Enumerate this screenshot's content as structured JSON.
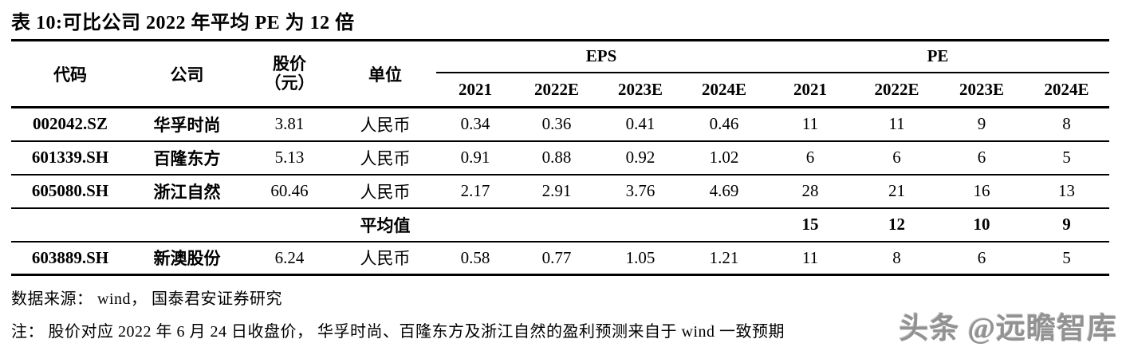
{
  "title": "表 10:可比公司 2022 年平均 PE 为 12 倍",
  "table": {
    "col_headers": {
      "code": "代码",
      "company": "公司",
      "price_line1": "股价",
      "price_line2": "（元）",
      "unit": "单位",
      "eps_group": "EPS",
      "pe_group": "PE",
      "years": [
        "2021",
        "2022E",
        "2023E",
        "2024E"
      ]
    },
    "average_label": "平均值",
    "rows": [
      {
        "code": "002042.SZ",
        "company": "华孚时尚",
        "price": "3.81",
        "unit": "人民币",
        "eps": [
          "0.34",
          "0.36",
          "0.41",
          "0.46"
        ],
        "pe": [
          "11",
          "11",
          "9",
          "8"
        ]
      },
      {
        "code": "601339.SH",
        "company": "百隆东方",
        "price": "5.13",
        "unit": "人民币",
        "eps": [
          "0.91",
          "0.88",
          "0.92",
          "1.02"
        ],
        "pe": [
          "6",
          "6",
          "6",
          "5"
        ]
      },
      {
        "code": "605080.SH",
        "company": "浙江自然",
        "price": "60.46",
        "unit": "人民币",
        "eps": [
          "2.17",
          "2.91",
          "3.76",
          "4.69"
        ],
        "pe": [
          "28",
          "21",
          "16",
          "13"
        ]
      },
      {
        "code": "",
        "company": "",
        "price": "",
        "unit": "平均值",
        "eps": [
          "",
          "",
          "",
          ""
        ],
        "pe": [
          "15",
          "12",
          "10",
          "9"
        ]
      },
      {
        "code": "603889.SH",
        "company": "新澳股份",
        "price": "6.24",
        "unit": "人民币",
        "eps": [
          "0.58",
          "0.77",
          "1.05",
          "1.21"
        ],
        "pe": [
          "11",
          "8",
          "6",
          "5"
        ]
      }
    ]
  },
  "footer": {
    "source": "数据来源： wind， 国泰君安证券研究",
    "note": "注： 股价对应 2022 年 6 月 24 日收盘价， 华孚时尚、百隆东方及浙江自然的盈利预测来自于 wind 一致预期"
  },
  "watermark": "头条 @远瞻智库"
}
